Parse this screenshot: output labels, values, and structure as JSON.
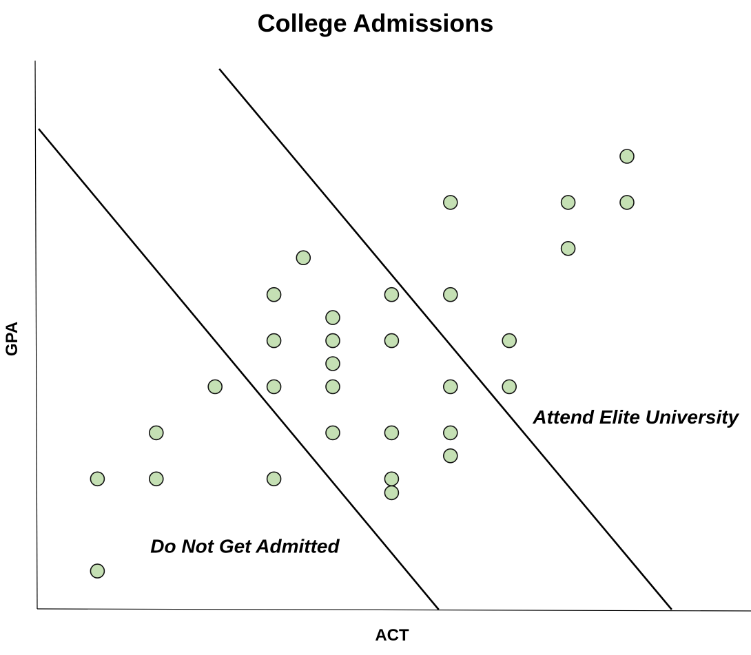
{
  "chart_data": {
    "type": "scatter",
    "title": "College Admissions",
    "xlabel": "ACT",
    "ylabel": "GPA",
    "grid": false,
    "legend": "none",
    "xlim": [
      0,
      12
    ],
    "ylim": [
      0,
      12
    ],
    "point_color": "#c5e0b4",
    "point_stroke": "#111111",
    "points": [
      {
        "x": 1,
        "y": 3
      },
      {
        "x": 2,
        "y": 4
      },
      {
        "x": 1,
        "y": 1
      },
      {
        "x": 2,
        "y": 3
      },
      {
        "x": 3,
        "y": 5
      },
      {
        "x": 4,
        "y": 7
      },
      {
        "x": 4,
        "y": 6
      },
      {
        "x": 4,
        "y": 5
      },
      {
        "x": 4,
        "y": 3
      },
      {
        "x": 4.5,
        "y": 7.8
      },
      {
        "x": 5,
        "y": 6.5
      },
      {
        "x": 5,
        "y": 6
      },
      {
        "x": 5,
        "y": 5.5
      },
      {
        "x": 5,
        "y": 5
      },
      {
        "x": 5,
        "y": 4
      },
      {
        "x": 6,
        "y": 7
      },
      {
        "x": 6,
        "y": 6
      },
      {
        "x": 6,
        "y": 4
      },
      {
        "x": 6,
        "y": 3
      },
      {
        "x": 6,
        "y": 2.7
      },
      {
        "x": 7,
        "y": 9
      },
      {
        "x": 7,
        "y": 7
      },
      {
        "x": 7,
        "y": 5
      },
      {
        "x": 7,
        "y": 4
      },
      {
        "x": 7,
        "y": 3.5
      },
      {
        "x": 8,
        "y": 6
      },
      {
        "x": 8,
        "y": 5
      },
      {
        "x": 9,
        "y": 9
      },
      {
        "x": 9,
        "y": 8
      },
      {
        "x": 10,
        "y": 10
      },
      {
        "x": 10,
        "y": 9
      }
    ],
    "boundaries": [
      {
        "x1": 0,
        "y1": 10.6,
        "x2": 6.8,
        "y2": 0
      },
      {
        "x1": 3.07,
        "y1": 11.9,
        "x2": 10.76,
        "y2": 0
      }
    ],
    "annotations": [
      {
        "text": "Do Not Get Admitted",
        "x": 1.9,
        "y": 1.4,
        "anchor": "start"
      },
      {
        "text": "Attend Elite University",
        "x": 8.4,
        "y": 4.2,
        "anchor": "start"
      }
    ]
  }
}
